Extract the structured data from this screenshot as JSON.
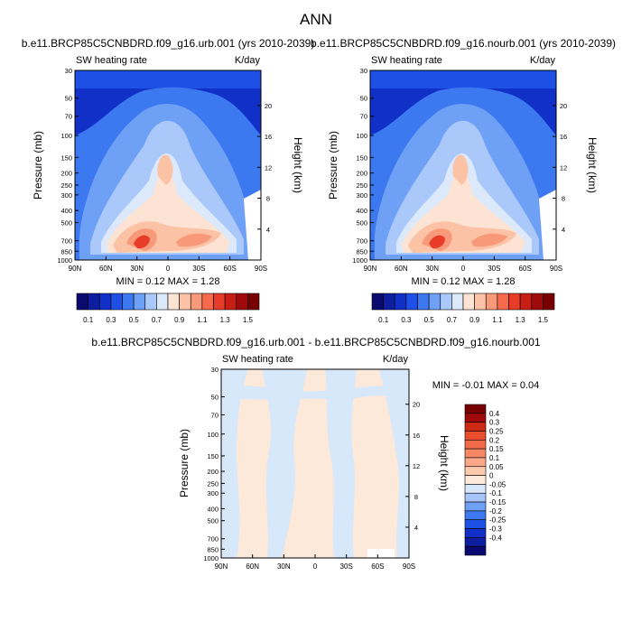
{
  "page": {
    "title": "ANN"
  },
  "chart_data": [
    {
      "type": "contour",
      "title": "b.e11.BRCP85C5CNBDRD.f09_g16.urb.001 (yrs 2010-2039)",
      "left_label": "SW heating rate",
      "right_label": "K/day",
      "xlabel": "",
      "ylabel": "Pressure (mb)",
      "y2label": "Height (km)",
      "x_ticks": [
        "90N",
        "60N",
        "30N",
        "0",
        "30S",
        "60S",
        "90S"
      ],
      "y_ticks": [
        "1000",
        "850",
        "700",
        "500",
        "400",
        "300",
        "250",
        "200",
        "150",
        "100",
        "70",
        "50",
        "30"
      ],
      "y_tick_values": [
        1000,
        850,
        700,
        500,
        400,
        300,
        250,
        200,
        150,
        100,
        70,
        50,
        30
      ],
      "y2_ticks": [
        "4",
        "8",
        "12",
        "16",
        "20"
      ],
      "y2_tick_values": [
        4,
        8,
        12,
        16,
        20
      ],
      "ylim": [
        1000,
        30
      ],
      "min_text": "MIN =   0.12   MAX =    1.28",
      "min": 0.12,
      "max": 1.28,
      "levels": [
        0.1,
        0.2,
        0.3,
        0.4,
        0.5,
        0.6,
        0.7,
        0.8,
        0.9,
        1.0,
        1.1,
        1.2,
        1.3,
        1.4,
        1.5
      ]
    },
    {
      "type": "contour",
      "title": "b.e11.BRCP85C5CNBDRD.f09_g16.nourb.001 (yrs 2010-2039)",
      "left_label": "SW heating rate",
      "right_label": "K/day",
      "xlabel": "",
      "ylabel": "Pressure (mb)",
      "y2label": "Height (km)",
      "x_ticks": [
        "90N",
        "60N",
        "30N",
        "0",
        "30S",
        "60S",
        "90S"
      ],
      "y_ticks": [
        "1000",
        "850",
        "700",
        "500",
        "400",
        "300",
        "250",
        "200",
        "150",
        "100",
        "70",
        "50",
        "30"
      ],
      "y_tick_values": [
        1000,
        850,
        700,
        500,
        400,
        300,
        250,
        200,
        150,
        100,
        70,
        50,
        30
      ],
      "y2_ticks": [
        "4",
        "8",
        "12",
        "16",
        "20"
      ],
      "y2_tick_values": [
        4,
        8,
        12,
        16,
        20
      ],
      "ylim": [
        1000,
        30
      ],
      "min_text": "MIN =   0.12   MAX =    1.28",
      "min": 0.12,
      "max": 1.28,
      "levels": [
        0.1,
        0.2,
        0.3,
        0.4,
        0.5,
        0.6,
        0.7,
        0.8,
        0.9,
        1.0,
        1.1,
        1.2,
        1.3,
        1.4,
        1.5
      ]
    },
    {
      "type": "contour",
      "title": "b.e11.BRCP85C5CNBDRD.f09_g16.urb.001 - b.e11.BRCP85C5CNBDRD.f09_g16.nourb.001",
      "left_label": "SW heating rate",
      "right_label": "K/day",
      "xlabel": "",
      "ylabel": "Pressure (mb)",
      "y2label": "Height (km)",
      "x_ticks": [
        "90N",
        "60N",
        "30N",
        "0",
        "30S",
        "60S",
        "90S"
      ],
      "y_ticks": [
        "1000",
        "850",
        "700",
        "500",
        "400",
        "300",
        "250",
        "200",
        "150",
        "100",
        "70",
        "50",
        "30"
      ],
      "y_tick_values": [
        1000,
        850,
        700,
        500,
        400,
        300,
        250,
        200,
        150,
        100,
        70,
        50,
        30
      ],
      "y2_ticks": [
        "4",
        "8",
        "12",
        "16",
        "20"
      ],
      "y2_tick_values": [
        4,
        8,
        12,
        16,
        20
      ],
      "ylim": [
        1000,
        30
      ],
      "min_text": "MIN =  -0.01   MAX =    0.04",
      "min": -0.01,
      "max": 0.04,
      "levels": [
        -0.4,
        -0.3,
        -0.25,
        -0.2,
        -0.15,
        -0.1,
        -0.05,
        0,
        0.05,
        0.1,
        0.15,
        0.2,
        0.25,
        0.3,
        0.4
      ]
    }
  ],
  "colorbars": {
    "main": {
      "colors": [
        "#0a0a70",
        "#0d1ea0",
        "#1030c8",
        "#1e50e6",
        "#3c78f0",
        "#6ea0f5",
        "#aac8fa",
        "#dce9fb",
        "#fde3d3",
        "#fbc2a6",
        "#f89a7a",
        "#f46a4a",
        "#e63c28",
        "#c81e14",
        "#a00a0a",
        "#780000"
      ],
      "labels": [
        "0.1",
        "0.3",
        "0.5",
        "0.7",
        "0.9",
        "1.1",
        "1.3",
        "1.5"
      ]
    },
    "diff": {
      "colors": [
        "#0a0a70",
        "#0d1ea0",
        "#1030c8",
        "#1e50e6",
        "#3c78f0",
        "#6ea0f5",
        "#a6c4f7",
        "#d7e8fb",
        "#fde9d9",
        "#fbc9ae",
        "#f9a98a",
        "#f68866",
        "#f26a48",
        "#e84e2e",
        "#cc2a14",
        "#a00a0a",
        "#780000"
      ],
      "labels": [
        "0.4",
        "0.3",
        "0.25",
        "0.2",
        "0.15",
        "0.1",
        "0.05",
        "0",
        "-0.05",
        "-0.1",
        "-0.15",
        "-0.2",
        "-0.25",
        "-0.3",
        "-0.4"
      ]
    }
  }
}
